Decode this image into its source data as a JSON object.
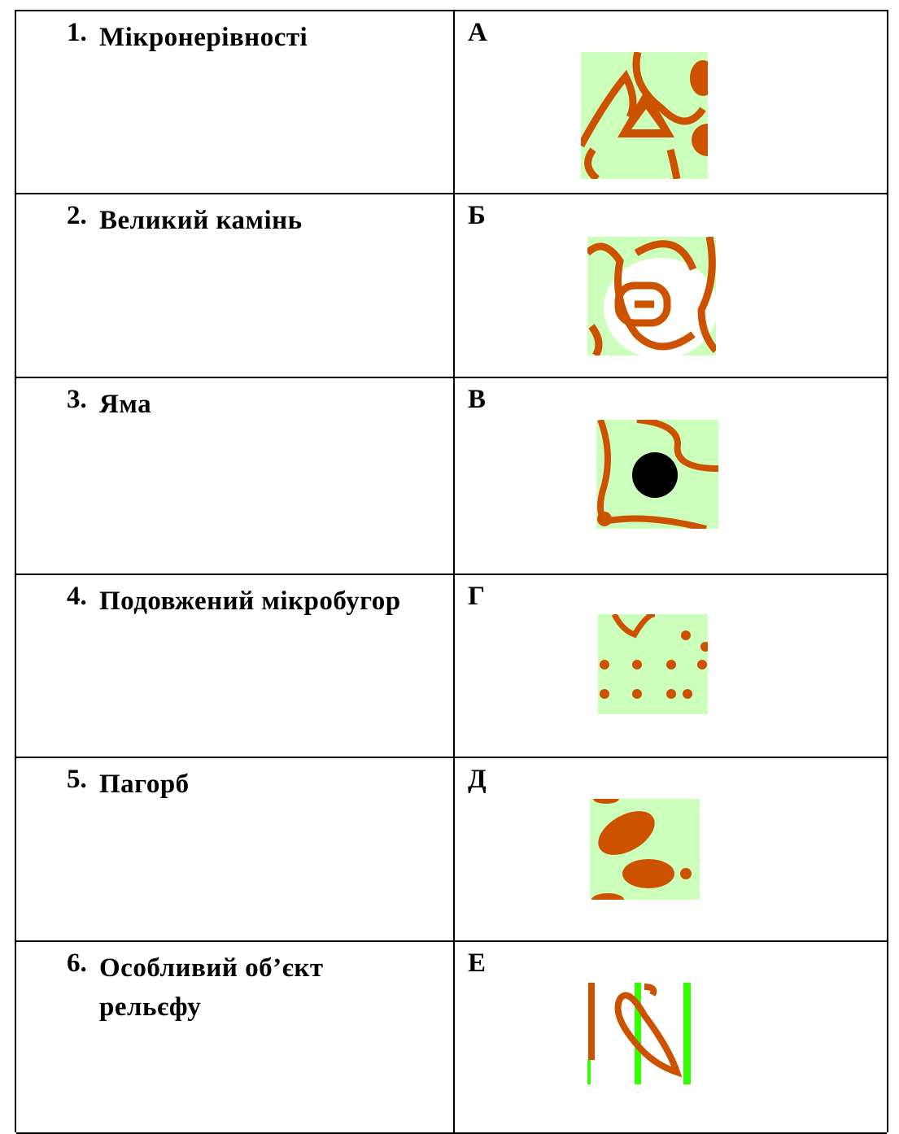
{
  "table": {
    "rows": [
      {
        "number": "1.",
        "label": "Мікронерівності",
        "letter": "А"
      },
      {
        "number": "2.",
        "label": "Великий камінь",
        "letter": "Б"
      },
      {
        "number": "3.",
        "label": "Яма",
        "letter": "В"
      },
      {
        "number": "4.",
        "label": "Подовжений мікробугор",
        "letter": "Г"
      },
      {
        "number": "5.",
        "label": "Пагорб",
        "letter": "Д"
      },
      {
        "number": "6.",
        "label": "Особливий об’єкт рельєфу",
        "letter": "Е"
      }
    ]
  }
}
